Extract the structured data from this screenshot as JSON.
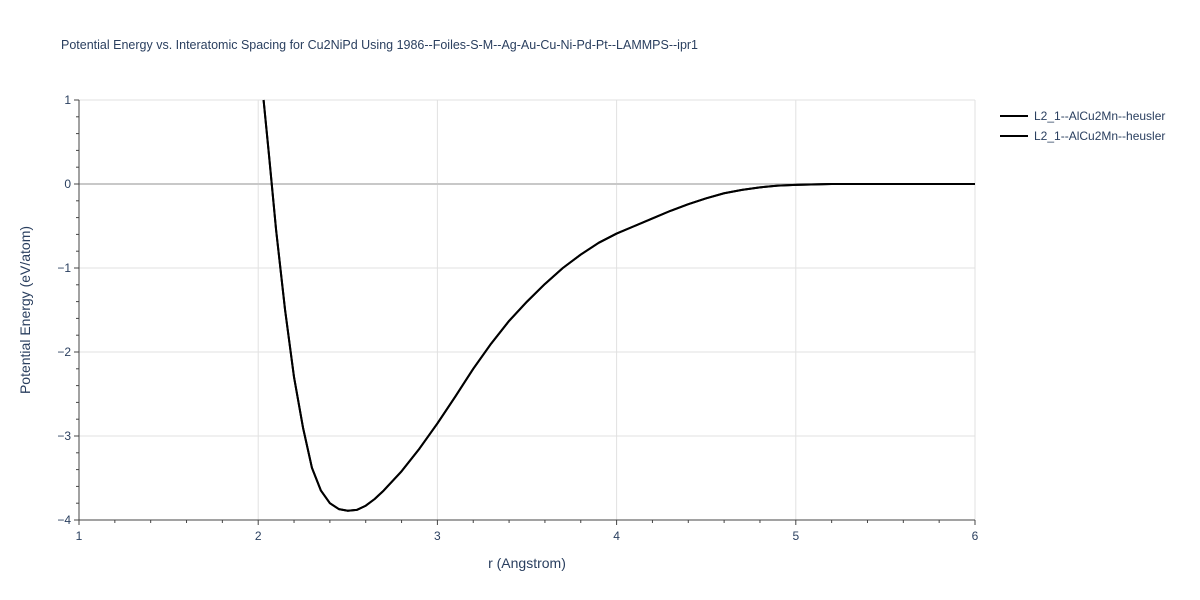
{
  "chart_data": {
    "type": "line",
    "title": "Potential Energy vs. Interatomic Spacing for Cu2NiPd Using 1986--Foiles-S-M--Ag-Au-Cu-Ni-Pd-Pt--LAMMPS--ipr1",
    "xlabel": "r (Angstrom)",
    "ylabel": "Potential Energy (eV/atom)",
    "xlim": [
      1,
      6
    ],
    "ylim": [
      -4,
      1
    ],
    "xticks": [
      1,
      2,
      3,
      4,
      5,
      6
    ],
    "yticks": [
      -4,
      -3,
      -2,
      -1,
      0,
      1
    ],
    "xtick_labels": [
      "1",
      "2",
      "3",
      "4",
      "5",
      "6"
    ],
    "ytick_labels": [
      "−4",
      "−3",
      "−2",
      "−1",
      "0",
      "1"
    ],
    "grid": true,
    "legend_position": "top-right",
    "series": [
      {
        "name": "L2_1--AlCu2Mn--heusler",
        "color": "#000000",
        "x": [
          2.03,
          2.06,
          2.1,
          2.15,
          2.2,
          2.25,
          2.3,
          2.35,
          2.4,
          2.45,
          2.5,
          2.55,
          2.6,
          2.65,
          2.7,
          2.8,
          2.9,
          3.0,
          3.1,
          3.2,
          3.3,
          3.4,
          3.5,
          3.6,
          3.7,
          3.8,
          3.9,
          4.0,
          4.1,
          4.2,
          4.3,
          4.4,
          4.5,
          4.6,
          4.7,
          4.8,
          4.9,
          5.0,
          5.2,
          5.5,
          6.0
        ],
        "y": [
          1.0,
          0.35,
          -0.55,
          -1.5,
          -2.3,
          -2.9,
          -3.38,
          -3.65,
          -3.8,
          -3.87,
          -3.89,
          -3.88,
          -3.83,
          -3.75,
          -3.65,
          -3.42,
          -3.15,
          -2.85,
          -2.53,
          -2.2,
          -1.9,
          -1.63,
          -1.4,
          -1.19,
          -1.0,
          -0.84,
          -0.7,
          -0.59,
          -0.5,
          -0.41,
          -0.32,
          -0.24,
          -0.17,
          -0.11,
          -0.07,
          -0.04,
          -0.02,
          -0.01,
          0.0,
          0.0,
          0.0
        ]
      },
      {
        "name": "L2_1--AlCu2Mn--heusler",
        "color": "#000000",
        "x": [
          2.03,
          2.06,
          2.1,
          2.15,
          2.2,
          2.25,
          2.3,
          2.35,
          2.4,
          2.45,
          2.5,
          2.55,
          2.6,
          2.65,
          2.7,
          2.8,
          2.9,
          3.0,
          3.1,
          3.2,
          3.3,
          3.4,
          3.5,
          3.6,
          3.7,
          3.8,
          3.9,
          4.0,
          4.1,
          4.2,
          4.3,
          4.4,
          4.5,
          4.6,
          4.7,
          4.8,
          4.9,
          5.0,
          5.2,
          5.5,
          6.0
        ],
        "y": [
          1.0,
          0.35,
          -0.55,
          -1.5,
          -2.3,
          -2.9,
          -3.38,
          -3.65,
          -3.8,
          -3.87,
          -3.89,
          -3.88,
          -3.83,
          -3.75,
          -3.65,
          -3.42,
          -3.15,
          -2.85,
          -2.53,
          -2.2,
          -1.9,
          -1.63,
          -1.4,
          -1.19,
          -1.0,
          -0.84,
          -0.7,
          -0.59,
          -0.5,
          -0.41,
          -0.32,
          -0.24,
          -0.17,
          -0.11,
          -0.07,
          -0.04,
          -0.02,
          -0.01,
          0.0,
          0.0,
          0.0
        ]
      }
    ]
  }
}
